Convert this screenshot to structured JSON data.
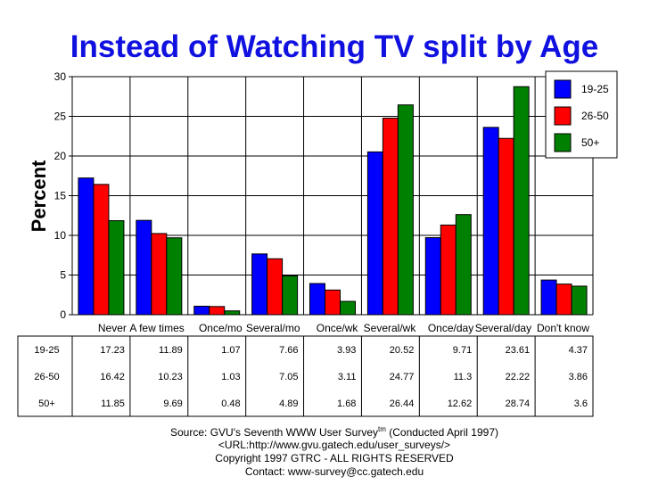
{
  "chart_data": {
    "type": "bar",
    "title": "Instead of Watching TV split by Age",
    "ylabel": "Percent",
    "xlabel": "",
    "ylim": [
      0,
      30
    ],
    "yticks": [
      0,
      5,
      10,
      15,
      20,
      25,
      30
    ],
    "grid": true,
    "legend_position": "top-right",
    "categories": [
      "Never",
      "A few times",
      "Once/mo",
      "Several/mo",
      "Once/wk",
      "Several/wk",
      "Once/day",
      "Several/day",
      "Don't know"
    ],
    "series": [
      {
        "name": "19-25",
        "color": "#0000ff",
        "values": [
          17.23,
          11.89,
          1.07,
          7.66,
          3.93,
          20.52,
          9.71,
          23.61,
          4.37
        ]
      },
      {
        "name": "26-50",
        "color": "#ff0000",
        "values": [
          16.42,
          10.23,
          1.03,
          7.05,
          3.11,
          24.77,
          11.3,
          22.22,
          3.86
        ]
      },
      {
        "name": "50+",
        "color": "#008000",
        "values": [
          11.85,
          9.69,
          0.48,
          4.89,
          1.68,
          26.44,
          12.62,
          28.74,
          3.6
        ]
      }
    ]
  },
  "footer": {
    "line1_pre": "Source: GVU's Seventh WWW User Survey",
    "line1_sup": "tm",
    "line1_post": " (Conducted April 1997)",
    "line2": "<URL:http://www.gvu.gatech.edu/user_surveys/>",
    "line3": "Copyright 1997 GTRC - ALL RIGHTS RESERVED",
    "line4": "Contact: www-survey@cc.gatech.edu"
  }
}
